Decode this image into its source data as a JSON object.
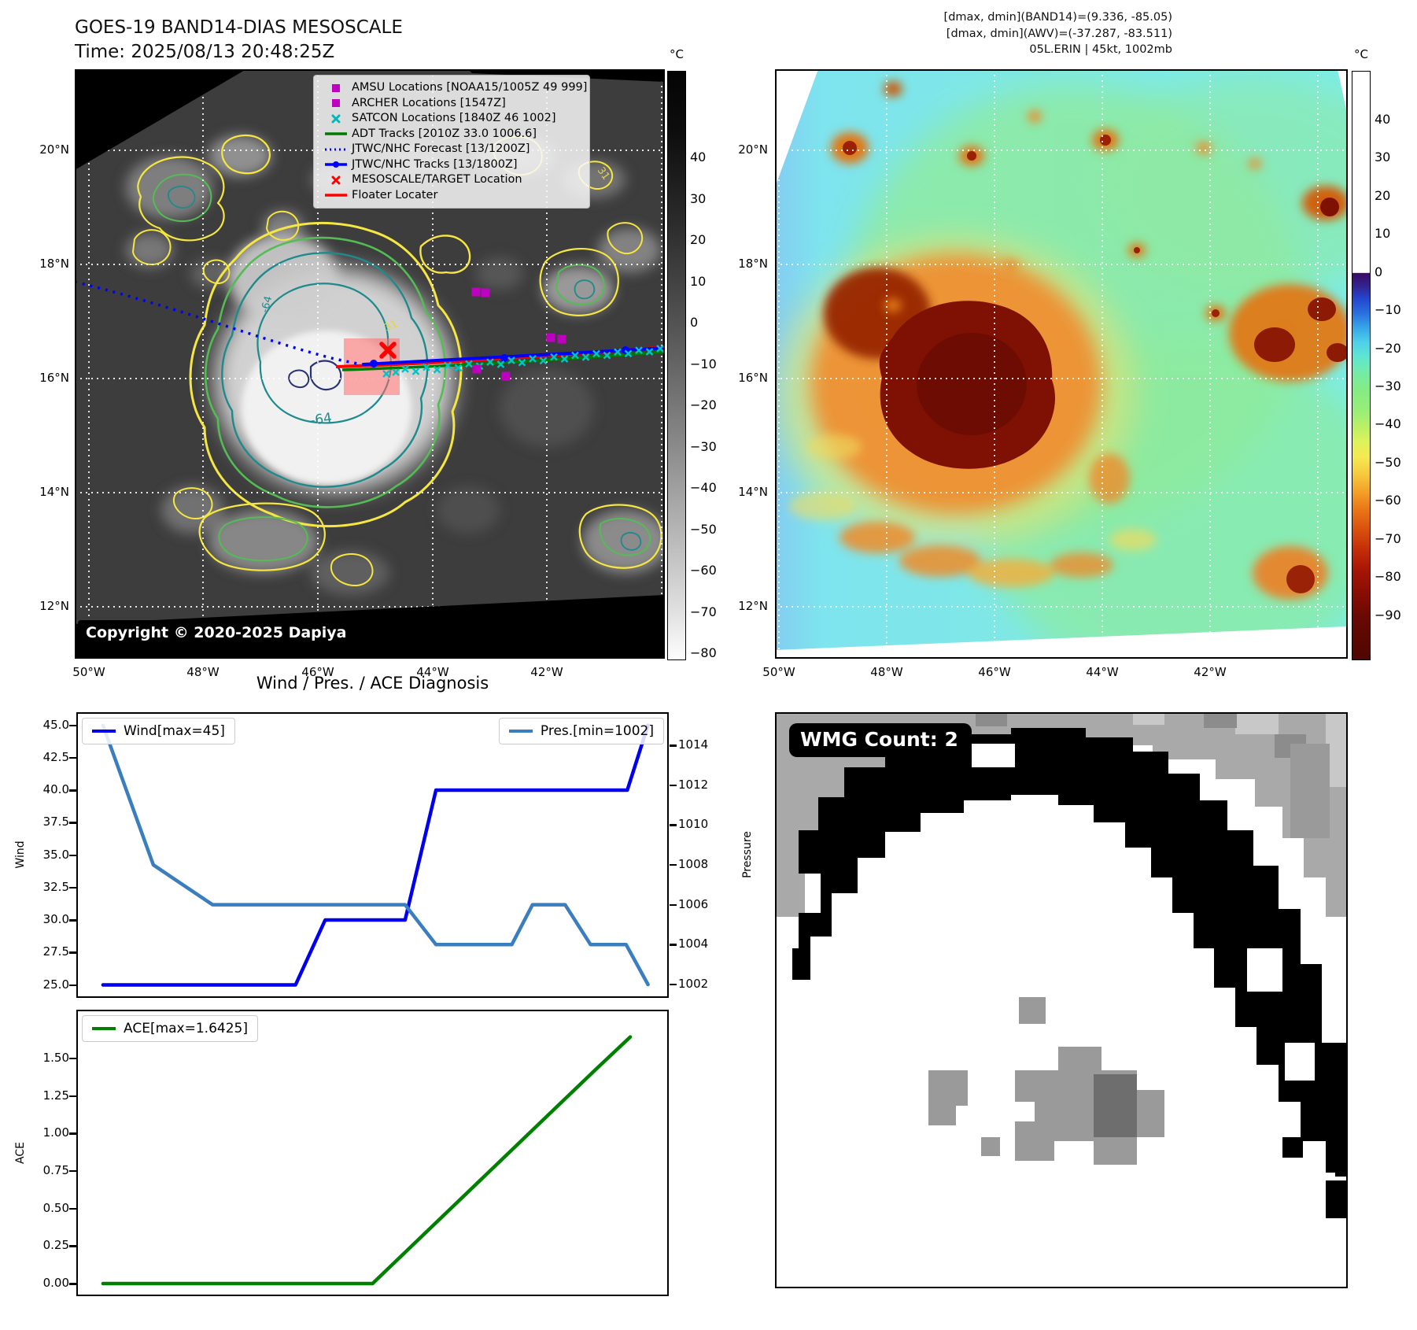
{
  "header": {
    "title_line1": "GOES-19 BAND14-DIAS MESOSCALE",
    "title_line2": "Time: 2025/08/13 20:48:25Z",
    "right_line1": "[dmax, dmin](BAND14)=(9.336, -85.05)",
    "right_line2": "[dmax, dmin](AWV)=(-37.287, -83.511)",
    "right_line3": "05L.ERIN | 45kt, 1002mb"
  },
  "left_map": {
    "legend_items": [
      {
        "label": "AMSU Locations [NOAA15/1005Z 49 999]",
        "marker": "square",
        "color": "#c000c0"
      },
      {
        "label": "ARCHER Locations [1547Z]",
        "marker": "square",
        "color": "#c000c0"
      },
      {
        "label": "SATCON Locations [1840Z 46 1002]",
        "marker": "x",
        "color": "#00b8ba"
      },
      {
        "label": "ADT Tracks [2010Z 33.0 1006.6]",
        "marker": "line",
        "color": "#007a00"
      },
      {
        "label": "JTWC/NHC Forecast [13/1200Z]",
        "marker": "dotted",
        "color": "#0000ff"
      },
      {
        "label": "JTWC/NHC Tracks [13/1800Z]",
        "marker": "line-dot",
        "color": "#0000ff"
      },
      {
        "label": "MESOSCALE/TARGET Location",
        "marker": "x",
        "color": "#ff0000"
      },
      {
        "label": "Floater Locater",
        "marker": "line",
        "color": "#ff0000"
      }
    ],
    "copyright": "Copyright © 2020-2025 Dapiya",
    "lat_labels": [
      "20°N",
      "18°N",
      "16°N",
      "14°N",
      "12°N"
    ],
    "lon_labels": [
      "50°W",
      "48°W",
      "46°W",
      "44°W",
      "42°W"
    ],
    "contour_labels": [
      {
        "text": "-64",
        "color": "teal"
      },
      {
        "text": "-64",
        "color": "teal"
      },
      {
        "text": "31",
        "color": "yellow"
      },
      {
        "text": "31",
        "color": "yellow"
      }
    ],
    "colorbar": {
      "unit": "°C",
      "ticks": [
        "40",
        "30",
        "20",
        "10",
        "0",
        "−10",
        "−20",
        "−30",
        "−40",
        "−50",
        "−60",
        "−70",
        "−80"
      ]
    }
  },
  "right_map": {
    "lat_labels": [
      "20°N",
      "18°N",
      "16°N",
      "14°N",
      "12°N"
    ],
    "lon_labels": [
      "50°W",
      "48°W",
      "46°W",
      "44°W",
      "42°W"
    ],
    "colorbar": {
      "unit": "°C",
      "ticks": [
        "40",
        "30",
        "20",
        "10",
        "0",
        "−10",
        "−20",
        "−30",
        "−40",
        "−50",
        "−60",
        "−70",
        "−80",
        "−90"
      ]
    }
  },
  "wmg": {
    "badge": "WMG Count: 2"
  },
  "charts": {
    "section_title": "Wind / Pres. / ACE Diagnosis"
  },
  "chart_data": [
    {
      "type": "line",
      "title": "Wind / Pres. / ACE Diagnosis",
      "ylabel": "Wind",
      "y2label": "Pressure",
      "ylim": [
        24.0,
        46.0
      ],
      "y2lim": [
        1001.3,
        1015.7
      ],
      "yticks": [
        "45.0",
        "42.5",
        "40.0",
        "37.5",
        "35.0",
        "32.5",
        "30.0",
        "27.5",
        "25.0"
      ],
      "y2ticks": [
        "1014",
        "1012",
        "1010",
        "1008",
        "1006",
        "1004",
        "1002"
      ],
      "grid": false,
      "xticklabels": [],
      "legend_position": "upper left and upper right",
      "series": [
        {
          "name": "Wind[max=45]",
          "axis": "wind",
          "color": "#0000ee",
          "points": [
            [
              0.045,
              25
            ],
            [
              0.37,
              25
            ],
            [
              0.42,
              30
            ],
            [
              0.555,
              30
            ],
            [
              0.607,
              40
            ],
            [
              0.93,
              40
            ],
            [
              0.965,
              45
            ]
          ]
        },
        {
          "name": "Pres.[min=1002]",
          "axis": "pressure",
          "color": "#3a7ebf",
          "points": [
            [
              0.045,
              1015
            ],
            [
              0.13,
              1008
            ],
            [
              0.16,
              1007.4
            ],
            [
              0.23,
              1006
            ],
            [
              0.555,
              1006
            ],
            [
              0.607,
              1004
            ],
            [
              0.735,
              1004
            ],
            [
              0.77,
              1006
            ],
            [
              0.825,
              1006
            ],
            [
              0.868,
              1004
            ],
            [
              0.928,
              1004
            ],
            [
              0.965,
              1002
            ]
          ]
        }
      ]
    },
    {
      "type": "line",
      "ylabel": "ACE",
      "ylim": [
        -0.08,
        1.83
      ],
      "yticks": [
        "1.50",
        "1.25",
        "1.00",
        "0.75",
        "0.50",
        "0.25",
        "0.00"
      ],
      "grid": false,
      "xticklabels": [],
      "legend_position": "upper left",
      "series": [
        {
          "name": "ACE[max=1.6425]",
          "axis": "ace",
          "color": "#008000",
          "points": [
            [
              0.045,
              0
            ],
            [
              0.5,
              0
            ],
            [
              0.875,
              1.42
            ],
            [
              0.935,
              1.6425
            ]
          ]
        }
      ]
    }
  ]
}
